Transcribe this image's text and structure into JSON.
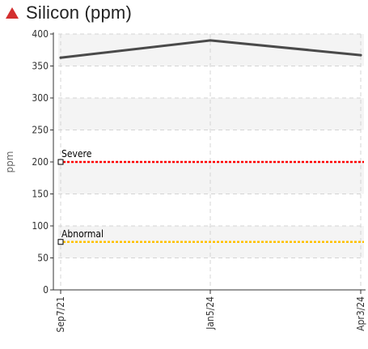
{
  "chart_data": {
    "type": "line",
    "title": "Silicon (ppm)",
    "title_icon": "warning-triangle-icon",
    "status_color": "#d32f2f",
    "ylabel": "ppm",
    "xlabel": "",
    "ylim": [
      0,
      400
    ],
    "yticks": [
      0,
      50,
      100,
      150,
      200,
      250,
      300,
      350,
      400
    ],
    "grid": true,
    "x": [
      "Sep7/21",
      "Jan5/24",
      "Apr3/24"
    ],
    "series": [
      {
        "values": [
          363,
          390,
          367
        ],
        "color": "#4a4a4a"
      }
    ],
    "thresholds": [
      {
        "label": "Severe",
        "value": 200,
        "color": "#ff0000"
      },
      {
        "label": "Abnormal",
        "value": 75,
        "color": "#ffc000"
      }
    ]
  }
}
